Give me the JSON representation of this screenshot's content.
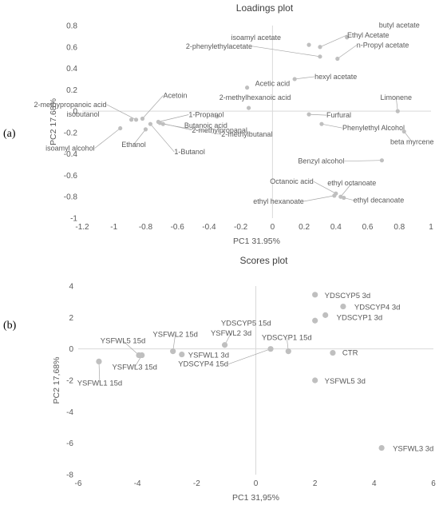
{
  "panel_labels": [
    "(a)",
    "(b)"
  ],
  "colors": {
    "point": "#bfbfbf",
    "axis_line": "#d9d9d9",
    "text": "#595959",
    "title": "#404040",
    "leader": "#a6a6a6"
  },
  "chart_data": [
    {
      "type": "scatter",
      "title": "Loadings plot",
      "xlabel": "PC1 31.95%",
      "ylabel": "PC2 17.68%",
      "xlim": [
        -1.2,
        1
      ],
      "ylim": [
        -1,
        0.8
      ],
      "xticks": [
        -1.2,
        -1,
        -0.8,
        -0.6,
        -0.4,
        -0.2,
        0,
        0.2,
        0.4,
        0.6,
        0.8,
        1
      ],
      "yticks": [
        -1,
        -0.8,
        -0.6,
        -0.4,
        -0.2,
        0,
        0.2,
        0.4,
        0.6,
        0.8
      ],
      "xtick_labels": [
        "-1.2",
        "-1",
        "-0.8",
        "-0.6",
        "-0.4",
        "-0.2",
        "0",
        "0.2",
        "0.4",
        "0.6",
        "0.8",
        "1"
      ],
      "ytick_labels": [
        "-1",
        "-0.8",
        "-0.6",
        "-0.4",
        "-0.2",
        "0",
        "0.2",
        "0.4",
        "0.6",
        "0.8"
      ],
      "grid": false,
      "points": [
        {
          "label": "isoamyl acetate",
          "x": 0.23,
          "y": 0.62
        },
        {
          "label": "butyl acetate",
          "x": 0.47,
          "y": 0.69
        },
        {
          "label": "Ethyl Acetate",
          "x": 0.3,
          "y": 0.6
        },
        {
          "label": "2-phenylethylacetate",
          "x": 0.3,
          "y": 0.51
        },
        {
          "label": "n-Propyl acetate",
          "x": 0.41,
          "y": 0.49
        },
        {
          "label": "hexyl acetate",
          "x": 0.14,
          "y": 0.3
        },
        {
          "label": "Acetic acid",
          "x": -0.16,
          "y": 0.22
        },
        {
          "label": "2-methylhexanoic acid",
          "x": -0.15,
          "y": 0.03
        },
        {
          "label": "Butanoic acid",
          "x": -0.35,
          "y": -0.05
        },
        {
          "label": "Furfural",
          "x": 0.23,
          "y": -0.03
        },
        {
          "label": "Phenylethyl Alcohol",
          "x": 0.31,
          "y": -0.12
        },
        {
          "label": "Limonene",
          "x": 0.79,
          "y": 0.0
        },
        {
          "label": "beta myrcene",
          "x": 0.83,
          "y": -0.19
        },
        {
          "label": "Benzyl alcohol",
          "x": 0.69,
          "y": -0.46
        },
        {
          "label": "Octanoic acid",
          "x": 0.4,
          "y": -0.77
        },
        {
          "label": "ethyl octanoate",
          "x": 0.43,
          "y": -0.8
        },
        {
          "label": "ethyl decanoate",
          "x": 0.45,
          "y": -0.81
        },
        {
          "label": "ethyl hexanoate",
          "x": 0.39,
          "y": -0.79
        },
        {
          "label": "2-methypropanoic acid",
          "x": -0.86,
          "y": -0.08
        },
        {
          "label": "Acetoin",
          "x": -0.82,
          "y": -0.07
        },
        {
          "label": "isobutanol",
          "x": -0.89,
          "y": -0.08
        },
        {
          "label": "1-Propanol",
          "x": -0.72,
          "y": -0.1
        },
        {
          "label": "2-methylpropanal",
          "x": -0.71,
          "y": -0.11
        },
        {
          "label": "2-methylbutanal",
          "x": -0.69,
          "y": -0.12
        },
        {
          "label": "Ethanol",
          "x": -0.8,
          "y": -0.17
        },
        {
          "label": "isoamyl alcohol",
          "x": -0.96,
          "y": -0.16
        },
        {
          "label": "1-Butanol",
          "x": -0.77,
          "y": -0.12
        }
      ]
    },
    {
      "type": "scatter",
      "title": "Scores plot",
      "xlabel": "PC1 31,95%",
      "ylabel": "PC2 17,68%",
      "xlim": [
        -6,
        6
      ],
      "ylim": [
        -8,
        4
      ],
      "xticks": [
        -6,
        -4,
        -2,
        0,
        2,
        4,
        6
      ],
      "yticks": [
        -8,
        -6,
        -4,
        -2,
        0,
        2,
        4
      ],
      "xtick_labels": [
        "-6",
        "-4",
        "-2",
        "0",
        "2",
        "4",
        "6"
      ],
      "ytick_labels": [
        "-8",
        "-6",
        "-4",
        "-2",
        "0",
        "2",
        "4"
      ],
      "grid": false,
      "points": [
        {
          "label": "YDSCYP5 3d",
          "x": 2.0,
          "y": 3.45
        },
        {
          "label": "YDSCYP4 3d",
          "x": 2.95,
          "y": 2.7
        },
        {
          "label": "YDSCYP1 3d",
          "x": 2.35,
          "y": 2.15
        },
        {
          "label": "YDSCYP5 15d",
          "x": 2.0,
          "y": 1.8
        },
        {
          "label": "YDSCYP1 15d",
          "x": 1.1,
          "y": -0.15
        },
        {
          "label": "YDSCYP4 15d",
          "x": 0.5,
          "y": 0.0
        },
        {
          "label": "CTR",
          "x": 2.6,
          "y": -0.25
        },
        {
          "label": "YSFWL5 3d",
          "x": 2.0,
          "y": -2.0
        },
        {
          "label": "YSFWL3 3d",
          "x": 4.25,
          "y": -6.3
        },
        {
          "label": "YSFWL2 3d",
          "x": -1.05,
          "y": 0.25
        },
        {
          "label": "YSFWL2 15d",
          "x": -2.8,
          "y": -0.15
        },
        {
          "label": "YSFWL1 3d",
          "x": -2.5,
          "y": -0.35
        },
        {
          "label": "YSFWL5 15d",
          "x": -3.95,
          "y": -0.4
        },
        {
          "label": "YSFWL3 15d",
          "x": -3.85,
          "y": -0.4
        },
        {
          "label": "YSFWL1 15d",
          "x": -5.3,
          "y": -0.8
        }
      ]
    }
  ]
}
